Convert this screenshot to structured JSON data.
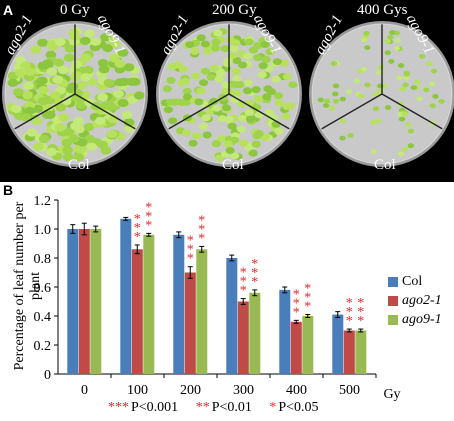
{
  "panel_a": {
    "letter": "A",
    "plates": [
      {
        "dose": "0 Gy",
        "left_label": "ago2-1",
        "right_label": "ago9-1",
        "bottom_label": "Col",
        "density": 1.0
      },
      {
        "dose": "200 Gy",
        "left_label": "ago2-1",
        "right_label": "ago9-1",
        "bottom_label": "Col",
        "density": 0.75
      },
      {
        "dose": "400 Gys",
        "left_label": "ago2-1",
        "right_label": "ago9-1",
        "bottom_label": "Col",
        "density": 0.3
      }
    ]
  },
  "panel_b": {
    "letter": "B",
    "significance_key": [
      {
        "stars": "***",
        "text": "P<0.001"
      },
      {
        "stars": "**",
        "text": "P<0.01"
      },
      {
        "stars": "*",
        "text": "P<0.05"
      }
    ]
  },
  "chart_data": {
    "type": "bar",
    "categories": [
      "0",
      "100",
      "200",
      "300",
      "400",
      "500"
    ],
    "xlabel": "Gy",
    "ylabel": "Percentage of leaf number per plant",
    "ylim": [
      0,
      1.2
    ],
    "yticks": [
      "0",
      "0.2",
      "0.4",
      "0.6",
      "0.8",
      "1.0",
      "1.2"
    ],
    "series": [
      {
        "name": "Col",
        "color": "#4a7ebb",
        "values": [
          1.0,
          1.07,
          0.96,
          0.8,
          0.58,
          0.41
        ],
        "errors": [
          0.03,
          0.01,
          0.02,
          0.02,
          0.02,
          0.02
        ],
        "stars": [
          "",
          "",
          "",
          "",
          "",
          ""
        ]
      },
      {
        "name": "ago2-1",
        "color": "#be4b48",
        "values": [
          1.0,
          0.86,
          0.7,
          0.5,
          0.36,
          0.3
        ],
        "errors": [
          0.04,
          0.03,
          0.04,
          0.02,
          0.01,
          0.01
        ],
        "stars": [
          "",
          "***",
          "***",
          "***",
          "***",
          "***"
        ]
      },
      {
        "name": "ago9-1",
        "color": "#98b954",
        "values": [
          1.0,
          0.96,
          0.86,
          0.56,
          0.4,
          0.3
        ],
        "errors": [
          0.02,
          0.01,
          0.02,
          0.02,
          0.01,
          0.01
        ],
        "stars": [
          "",
          "***",
          "***",
          "***",
          "***",
          "***"
        ]
      }
    ],
    "legend_position": "right",
    "grid": false
  }
}
